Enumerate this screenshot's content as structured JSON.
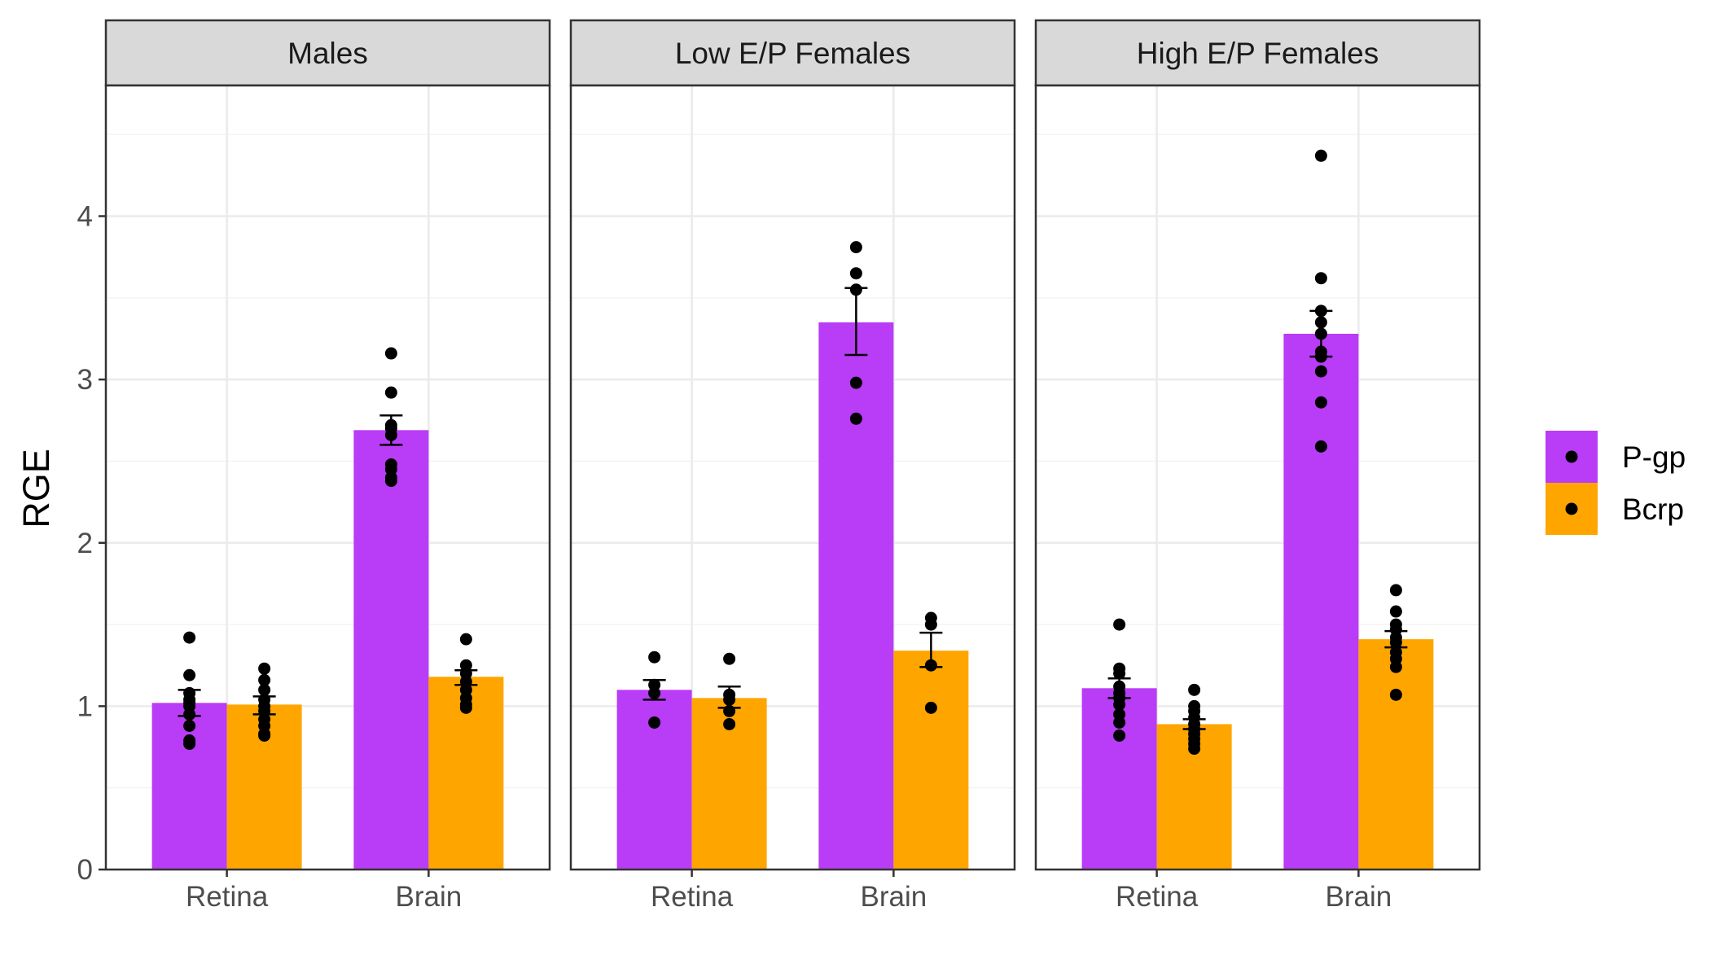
{
  "chart_data": {
    "type": "bar",
    "ylabel": "RGE",
    "xlabel": "",
    "ylim": [
      0,
      4.8
    ],
    "yticks": [
      0,
      1,
      2,
      3,
      4
    ],
    "grid": true,
    "legend_position": "right",
    "categories": [
      "Retina",
      "Brain"
    ],
    "series_styles": [
      {
        "name": "P-gp",
        "color": "#b93cf6"
      },
      {
        "name": "Bcrp",
        "color": "#ffa500"
      }
    ],
    "panels": [
      {
        "title": "Males",
        "groups": [
          {
            "category": "Retina",
            "bars": [
              {
                "series": "P-gp",
                "value": 1.02,
                "err": [
                  0.94,
                  1.1
                ],
                "points": [
                  1.42,
                  1.19,
                  1.08,
                  1.04,
                  1.02,
                  1.0,
                  0.95,
                  0.88,
                  0.79,
                  0.77
                ]
              },
              {
                "series": "Bcrp",
                "value": 1.01,
                "err": [
                  0.95,
                  1.06
                ],
                "points": [
                  1.23,
                  1.16,
                  1.1,
                  1.04,
                  1.0,
                  0.97,
                  0.92,
                  0.88,
                  0.83,
                  0.82
                ]
              }
            ]
          },
          {
            "category": "Brain",
            "bars": [
              {
                "series": "P-gp",
                "value": 2.69,
                "err": [
                  2.6,
                  2.78
                ],
                "points": [
                  3.16,
                  2.92,
                  2.72,
                  2.7,
                  2.66,
                  2.48,
                  2.45,
                  2.4,
                  2.38
                ]
              },
              {
                "series": "Bcrp",
                "value": 1.18,
                "err": [
                  1.13,
                  1.22
                ],
                "points": [
                  1.41,
                  1.25,
                  1.2,
                  1.15,
                  1.1,
                  1.05,
                  1.01,
                  0.99
                ]
              }
            ]
          }
        ]
      },
      {
        "title": "Low E/P Females",
        "groups": [
          {
            "category": "Retina",
            "bars": [
              {
                "series": "P-gp",
                "value": 1.1,
                "err": [
                  1.04,
                  1.16
                ],
                "points": [
                  1.3,
                  1.13,
                  1.08,
                  0.9
                ]
              },
              {
                "series": "Bcrp",
                "value": 1.05,
                "err": [
                  0.99,
                  1.12
                ],
                "points": [
                  1.29,
                  1.07,
                  1.04,
                  0.97,
                  0.89
                ]
              }
            ]
          },
          {
            "category": "Brain",
            "bars": [
              {
                "series": "P-gp",
                "value": 3.35,
                "err": [
                  3.15,
                  3.56
                ],
                "points": [
                  3.81,
                  3.65,
                  3.55,
                  2.98,
                  2.76
                ]
              },
              {
                "series": "Bcrp",
                "value": 1.34,
                "err": [
                  1.24,
                  1.45
                ],
                "points": [
                  1.54,
                  1.5,
                  1.25,
                  0.99
                ]
              }
            ]
          }
        ]
      },
      {
        "title": "High E/P Females",
        "groups": [
          {
            "category": "Retina",
            "bars": [
              {
                "series": "P-gp",
                "value": 1.11,
                "err": [
                  1.05,
                  1.17
                ],
                "points": [
                  1.5,
                  1.23,
                  1.2,
                  1.12,
                  1.08,
                  1.05,
                  1.01,
                  0.95,
                  0.9,
                  0.82
                ]
              },
              {
                "series": "Bcrp",
                "value": 0.89,
                "err": [
                  0.86,
                  0.92
                ],
                "points": [
                  1.1,
                  1.0,
                  0.97,
                  0.93,
                  0.89,
                  0.86,
                  0.83,
                  0.8,
                  0.77,
                  0.74
                ]
              }
            ]
          },
          {
            "category": "Brain",
            "bars": [
              {
                "series": "P-gp",
                "value": 3.28,
                "err": [
                  3.14,
                  3.42
                ],
                "points": [
                  4.37,
                  3.62,
                  3.42,
                  3.35,
                  3.28,
                  3.17,
                  3.14,
                  3.05,
                  2.86,
                  2.59
                ]
              },
              {
                "series": "Bcrp",
                "value": 1.41,
                "err": [
                  1.36,
                  1.46
                ],
                "points": [
                  1.71,
                  1.58,
                  1.5,
                  1.47,
                  1.42,
                  1.39,
                  1.33,
                  1.29,
                  1.24,
                  1.07
                ]
              }
            ]
          }
        ]
      }
    ]
  }
}
